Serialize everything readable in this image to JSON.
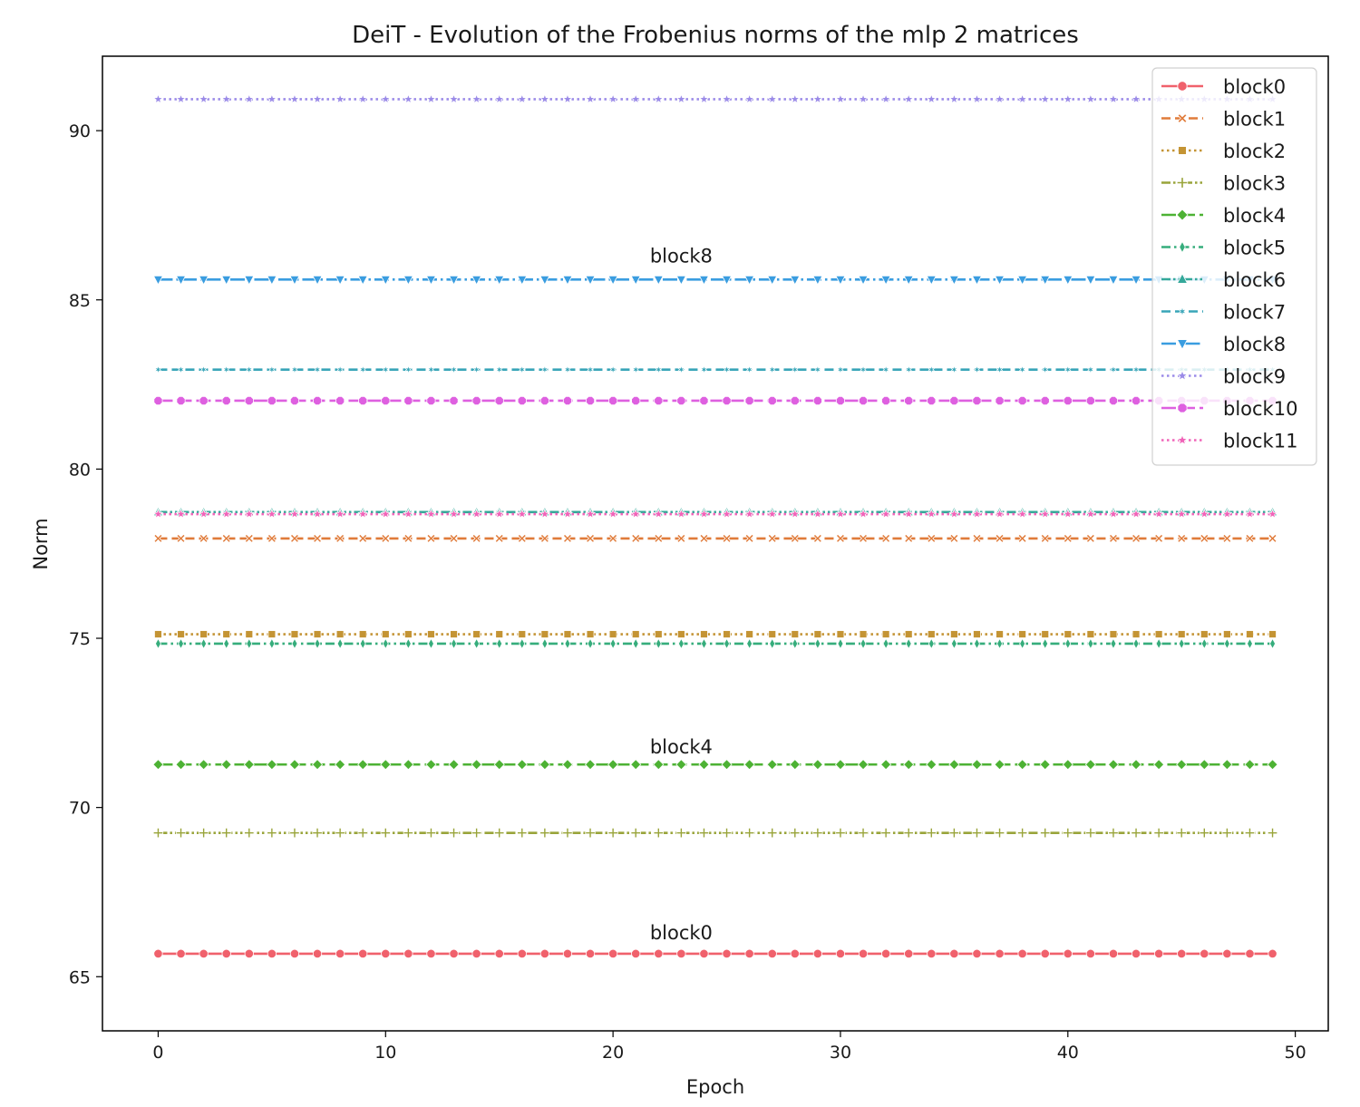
{
  "chart_data": {
    "type": "line",
    "title": "DeiT - Evolution of the Frobenius norms of the mlp 2 matrices",
    "xlabel": "Epoch",
    "ylabel": "Norm",
    "xlim": [
      -2.45,
      51.45
    ],
    "ylim": [
      63.4,
      92.2
    ],
    "xticks": [
      0,
      10,
      20,
      30,
      40,
      50
    ],
    "yticks": [
      65,
      70,
      75,
      80,
      85,
      90
    ],
    "grid": false,
    "legend_position": "top-right",
    "x_start": 0,
    "x_end": 49,
    "series": [
      {
        "name": "block0",
        "value": 65.68,
        "color": "#f0616c",
        "marker": "circle",
        "dash": "solid"
      },
      {
        "name": "block1",
        "value": 77.95,
        "color": "#e07b3a",
        "marker": "x",
        "dash": "dashed"
      },
      {
        "name": "block2",
        "value": 75.12,
        "color": "#c49434",
        "marker": "square",
        "dash": "dotted"
      },
      {
        "name": "block3",
        "value": 69.25,
        "color": "#99a43a",
        "marker": "plus",
        "dash": "dashdotdot"
      },
      {
        "name": "block4",
        "value": 71.27,
        "color": "#4db234",
        "marker": "diamond",
        "dash": "longdash"
      },
      {
        "name": "block5",
        "value": 74.84,
        "color": "#36ad7c",
        "marker": "thin-diamond",
        "dash": "dashdot"
      },
      {
        "name": "block6",
        "value": 78.73,
        "color": "#34a89a",
        "marker": "triangle-up",
        "dash": "dashdotdot"
      },
      {
        "name": "block7",
        "value": 82.94,
        "color": "#38a5b8",
        "marker": "tri",
        "dash": "dashed"
      },
      {
        "name": "block8",
        "value": 85.6,
        "color": "#3a9de0",
        "marker": "triangle-down",
        "dash": "longdashdot"
      },
      {
        "name": "block9",
        "value": 90.93,
        "color": "#9b8be8",
        "marker": "star",
        "dash": "dotted"
      },
      {
        "name": "block10",
        "value": 82.02,
        "color": "#de60e0",
        "marker": "octagon",
        "dash": "longdash"
      },
      {
        "name": "block11",
        "value": 78.67,
        "color": "#f063b8",
        "marker": "star",
        "dash": "dotted"
      }
    ],
    "annotations": [
      {
        "text": "block8",
        "x": 23,
        "y": 86.1
      },
      {
        "text": "block4",
        "x": 23,
        "y": 71.6
      },
      {
        "text": "block0",
        "x": 23,
        "y": 66.1
      }
    ]
  }
}
